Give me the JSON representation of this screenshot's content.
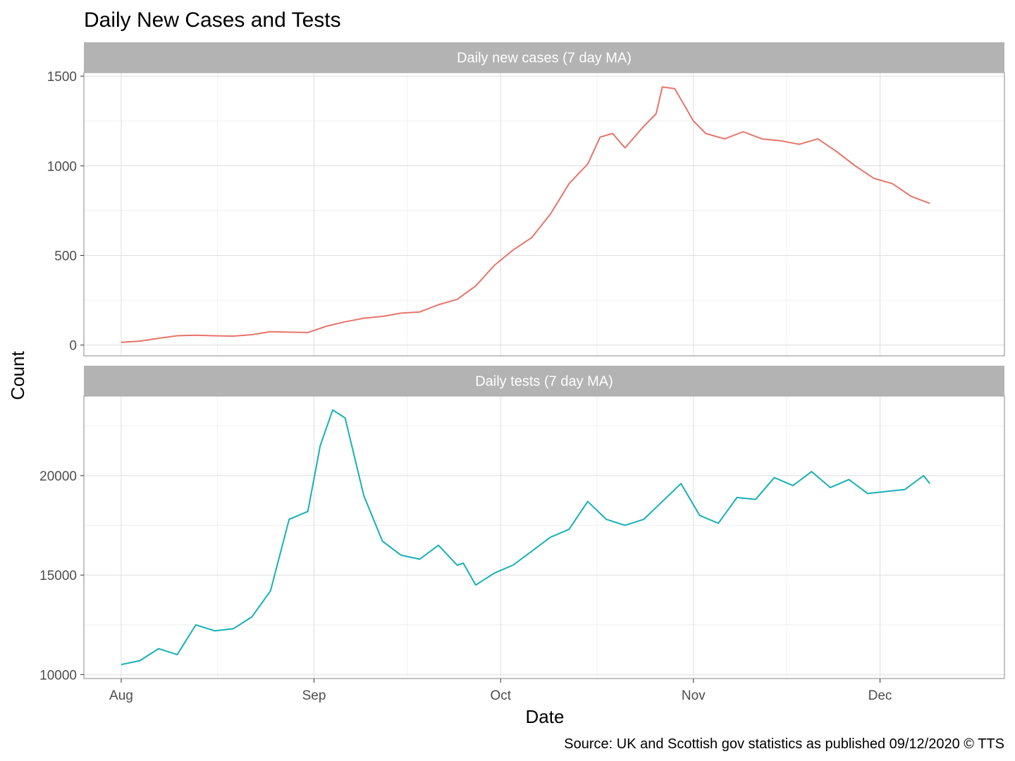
{
  "chart_data": {
    "type": "line",
    "title": "Daily New Cases and Tests",
    "xlabel": "Date",
    "ylabel": "Count",
    "caption": "Source: UK and Scottish gov statistics as published 09/12/2020  © TTS",
    "x_ticks": [
      {
        "label": "Aug",
        "date": "2020-08-01"
      },
      {
        "label": "Sep",
        "date": "2020-09-01"
      },
      {
        "label": "Oct",
        "date": "2020-10-01"
      },
      {
        "label": "Nov",
        "date": "2020-11-01"
      },
      {
        "label": "Dec",
        "date": "2020-12-01"
      }
    ],
    "xlim": [
      "2020-07-26",
      "2020-12-21"
    ],
    "grid": true,
    "legend": "none",
    "panels": [
      {
        "strip": "Daily new cases (7 day MA)",
        "color": "#E7746A",
        "ylim": [
          -60,
          1520
        ],
        "y_ticks": [
          0,
          500,
          1000,
          1500
        ],
        "x": [
          "2020-08-01",
          "2020-08-04",
          "2020-08-07",
          "2020-08-10",
          "2020-08-13",
          "2020-08-16",
          "2020-08-19",
          "2020-08-22",
          "2020-08-25",
          "2020-08-28",
          "2020-08-31",
          "2020-09-03",
          "2020-09-06",
          "2020-09-09",
          "2020-09-12",
          "2020-09-15",
          "2020-09-18",
          "2020-09-21",
          "2020-09-24",
          "2020-09-27",
          "2020-09-30",
          "2020-10-03",
          "2020-10-06",
          "2020-10-09",
          "2020-10-12",
          "2020-10-15",
          "2020-10-17",
          "2020-10-19",
          "2020-10-21",
          "2020-10-24",
          "2020-10-26",
          "2020-10-27",
          "2020-10-29",
          "2020-11-01",
          "2020-11-03",
          "2020-11-06",
          "2020-11-09",
          "2020-11-12",
          "2020-11-15",
          "2020-11-18",
          "2020-11-21",
          "2020-11-24",
          "2020-11-27",
          "2020-11-30",
          "2020-12-03",
          "2020-12-06",
          "2020-12-09"
        ],
        "y": [
          15,
          22,
          38,
          52,
          55,
          52,
          50,
          58,
          75,
          72,
          70,
          105,
          130,
          150,
          160,
          178,
          185,
          225,
          255,
          330,
          445,
          530,
          600,
          730,
          900,
          1010,
          1160,
          1180,
          1100,
          1220,
          1290,
          1440,
          1430,
          1250,
          1180,
          1150,
          1190,
          1150,
          1140,
          1120,
          1150,
          1080,
          1000,
          930,
          900,
          830,
          790
        ]
      },
      {
        "strip": "Daily tests (7 day MA)",
        "color": "#18B0B5",
        "ylim": [
          9800,
          24000
        ],
        "y_ticks": [
          10000,
          15000,
          20000
        ],
        "x": [
          "2020-08-01",
          "2020-08-04",
          "2020-08-07",
          "2020-08-10",
          "2020-08-13",
          "2020-08-16",
          "2020-08-19",
          "2020-08-22",
          "2020-08-25",
          "2020-08-28",
          "2020-08-31",
          "2020-09-02",
          "2020-09-04",
          "2020-09-06",
          "2020-09-09",
          "2020-09-12",
          "2020-09-15",
          "2020-09-18",
          "2020-09-21",
          "2020-09-24",
          "2020-09-25",
          "2020-09-27",
          "2020-09-30",
          "2020-10-03",
          "2020-10-06",
          "2020-10-09",
          "2020-10-12",
          "2020-10-15",
          "2020-10-18",
          "2020-10-21",
          "2020-10-24",
          "2020-10-27",
          "2020-10-30",
          "2020-11-02",
          "2020-11-05",
          "2020-11-08",
          "2020-11-11",
          "2020-11-14",
          "2020-11-17",
          "2020-11-20",
          "2020-11-23",
          "2020-11-26",
          "2020-11-29",
          "2020-12-02",
          "2020-12-05",
          "2020-12-08",
          "2020-12-09"
        ],
        "y": [
          10500,
          10700,
          11300,
          11000,
          12500,
          12200,
          12300,
          12900,
          14200,
          17800,
          18200,
          21500,
          23300,
          22900,
          19000,
          16700,
          16000,
          15800,
          16500,
          15500,
          15600,
          14500,
          15100,
          15500,
          16200,
          16900,
          17300,
          18700,
          17800,
          17500,
          17800,
          18700,
          19600,
          18000,
          17600,
          18900,
          18800,
          19900,
          19500,
          20200,
          19400,
          19800,
          19100,
          19200,
          19300,
          20000,
          19600
        ]
      }
    ]
  }
}
